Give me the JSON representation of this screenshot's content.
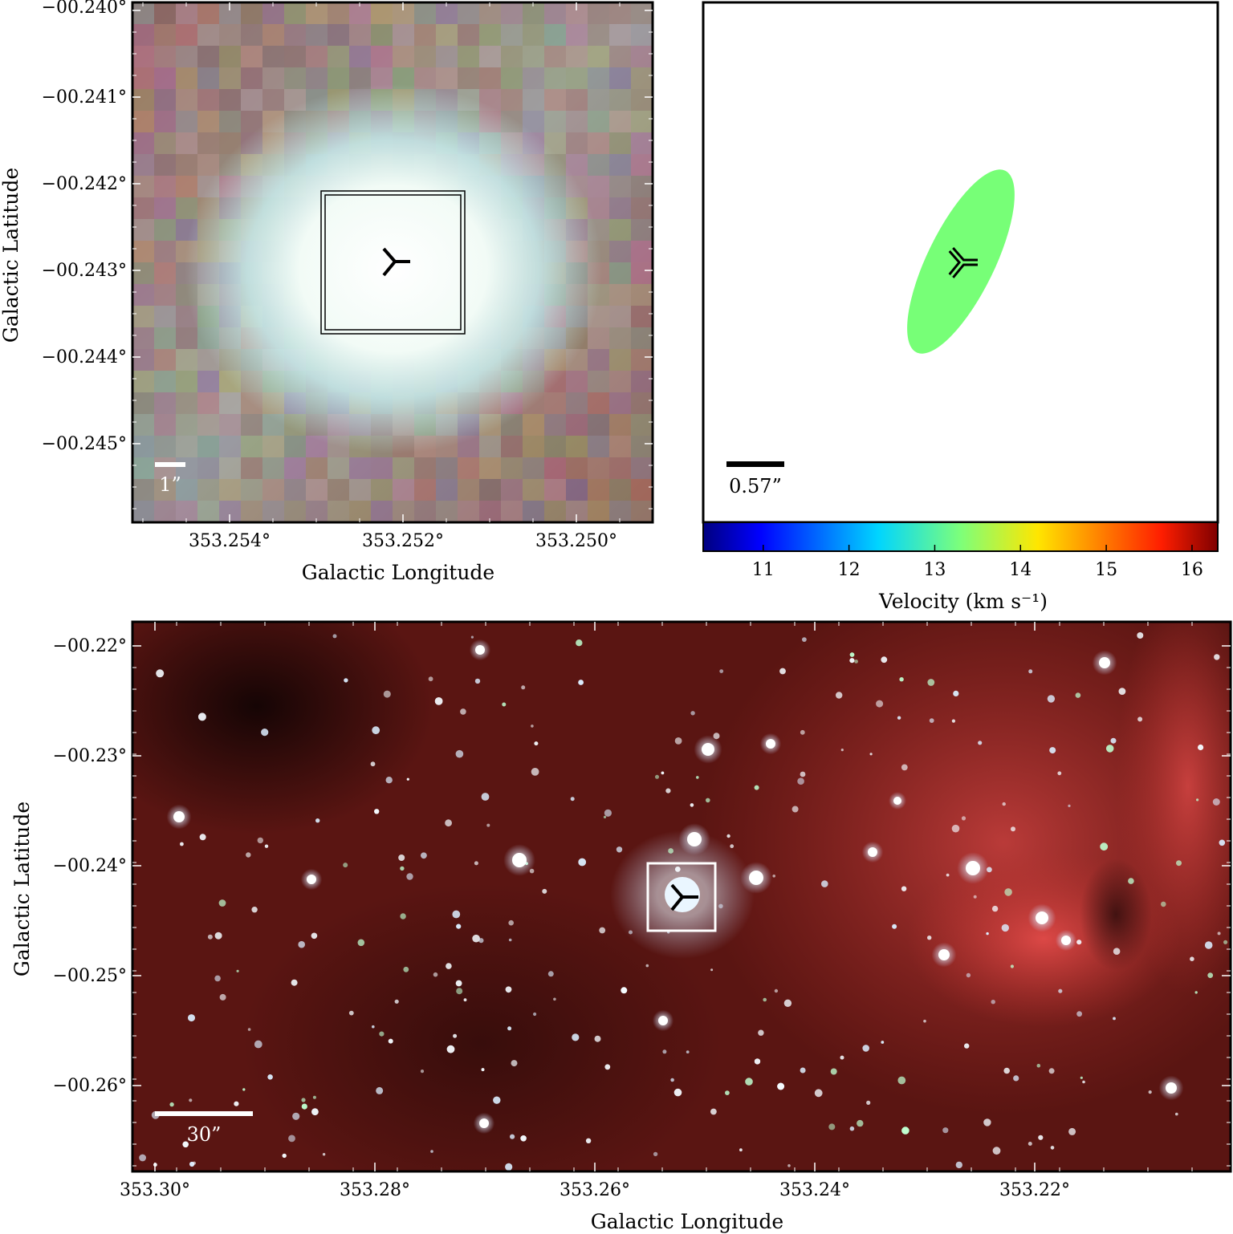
{
  "panels": {
    "zoom": {
      "y_ticks": [
        "−00.240°",
        "−00.241°",
        "−00.242°",
        "−00.243°",
        "−00.244°",
        "−00.245°"
      ],
      "x_ticks": [
        "353.254°",
        "353.252°",
        "353.250°"
      ],
      "ylabel": "Galactic Latitude",
      "xlabel": "Galactic Longitude",
      "scalebar_label": "1”"
    },
    "velocity": {
      "scalebar_label": "0.57”",
      "colorbar_ticks": [
        "11",
        "12",
        "13",
        "14",
        "15",
        "16"
      ],
      "colorbar_label": "Velocity (km s⁻¹)",
      "colorbar_range": [
        10.3,
        16.3
      ],
      "ellipse_velocity": 13.7
    },
    "wide": {
      "y_ticks": [
        "−00.22°",
        "−00.23°",
        "−00.24°",
        "−00.25°",
        "−00.26°"
      ],
      "x_ticks": [
        "353.30°",
        "353.28°",
        "353.26°",
        "353.24°",
        "353.22°"
      ],
      "ylabel": "Galactic Latitude",
      "xlabel": "Galactic Longitude",
      "scalebar_label": "30”"
    }
  },
  "colors": {
    "nebula_red": "#b8322e",
    "dark_bg": "#3a0d0c",
    "ellipse": "#77ff77",
    "star_white": "#f5fbff"
  }
}
